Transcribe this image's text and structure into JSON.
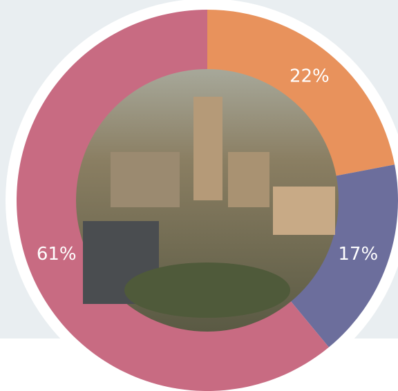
{
  "chart_data": {
    "type": "donut",
    "values": [
      22,
      17,
      61
    ],
    "value_labels": [
      "22%",
      "17%",
      "61%"
    ],
    "colors": [
      "#e8925c",
      "#6c6e9c",
      "#c86b82"
    ]
  }
}
